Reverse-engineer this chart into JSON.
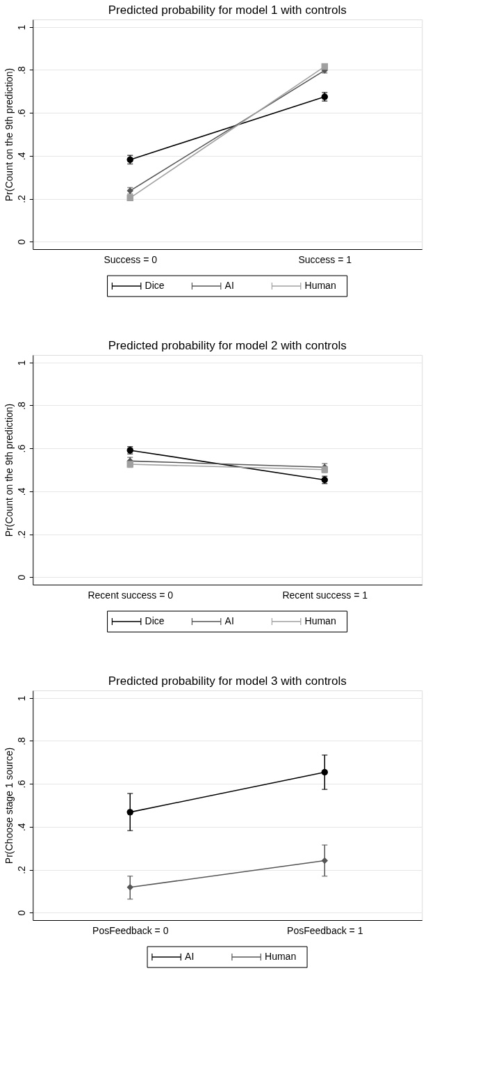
{
  "chart_data": [
    {
      "type": "line",
      "title": "Predicted probability for model 1 with controls",
      "ylabel": "Pr(Count on the 9th prediction)",
      "categories": [
        "Success = 0",
        "Success = 1"
      ],
      "ylim": [
        -0.035,
        1.035
      ],
      "yticks": [
        0,
        {
          "value": 0.2,
          "label": ".2"
        },
        {
          "value": 0.4,
          "label": ".4"
        },
        {
          "value": 0.6,
          "label": ".6"
        },
        {
          "value": 0.8,
          "label": ".8"
        },
        1
      ],
      "grid": "y",
      "legend": "bottom",
      "series": [
        {
          "name": "Dice",
          "color": "#000000",
          "marker": "circle",
          "values": [
            0.382,
            0.675
          ],
          "errors": [
            0.02,
            0.02
          ]
        },
        {
          "name": "AI",
          "color": "#555555",
          "marker": "diamond",
          "values": [
            0.237,
            0.798
          ],
          "errors": [
            0.015,
            0.012
          ]
        },
        {
          "name": "Human",
          "color": "#a0a0a0",
          "marker": "square",
          "values": [
            0.204,
            0.816
          ],
          "errors": [
            0.012,
            0.012
          ]
        }
      ]
    },
    {
      "type": "line",
      "title": "Predicted probability for model 2 with controls",
      "ylabel": "Pr(Count on the 9th prediction)",
      "categories": [
        "Recent success = 0",
        "Recent success = 1"
      ],
      "ylim": [
        -0.035,
        1.035
      ],
      "yticks": [
        0,
        {
          "value": 0.2,
          "label": ".2"
        },
        {
          "value": 0.4,
          "label": ".4"
        },
        {
          "value": 0.6,
          "label": ".6"
        },
        {
          "value": 0.8,
          "label": ".8"
        },
        1
      ],
      "grid": "y",
      "legend": "bottom",
      "series": [
        {
          "name": "Dice",
          "color": "#000000",
          "marker": "circle",
          "values": [
            0.591,
            0.453
          ],
          "errors": [
            0.017,
            0.017
          ]
        },
        {
          "name": "AI",
          "color": "#555555",
          "marker": "diamond",
          "values": [
            0.541,
            0.512
          ],
          "errors": [
            0.017,
            0.017
          ]
        },
        {
          "name": "Human",
          "color": "#a0a0a0",
          "marker": "square",
          "values": [
            0.526,
            0.501
          ],
          "errors": [
            0.015,
            0.015
          ]
        }
      ]
    },
    {
      "type": "line",
      "title": "Predicted probability for model 3 with controls",
      "ylabel": "Pr(Choose stage 1 source)",
      "categories": [
        "PosFeedback = 0",
        "PosFeedback = 1"
      ],
      "ylim": [
        -0.035,
        1.035
      ],
      "yticks": [
        0,
        {
          "value": 0.2,
          "label": ".2"
        },
        {
          "value": 0.4,
          "label": ".4"
        },
        {
          "value": 0.6,
          "label": ".6"
        },
        {
          "value": 0.8,
          "label": ".8"
        },
        1
      ],
      "grid": "y",
      "legend": "bottom",
      "series": [
        {
          "name": "AI",
          "color": "#000000",
          "marker": "circle",
          "values": [
            0.468,
            0.654
          ],
          "errors": [
            [
              0.382,
              0.555
            ],
            [
              0.574,
              0.734
            ]
          ]
        },
        {
          "name": "Human",
          "color": "#555555",
          "marker": "diamond",
          "values": [
            0.118,
            0.242
          ],
          "errors": [
            [
              0.063,
              0.17
            ],
            [
              0.17,
              0.315
            ]
          ]
        }
      ]
    }
  ]
}
